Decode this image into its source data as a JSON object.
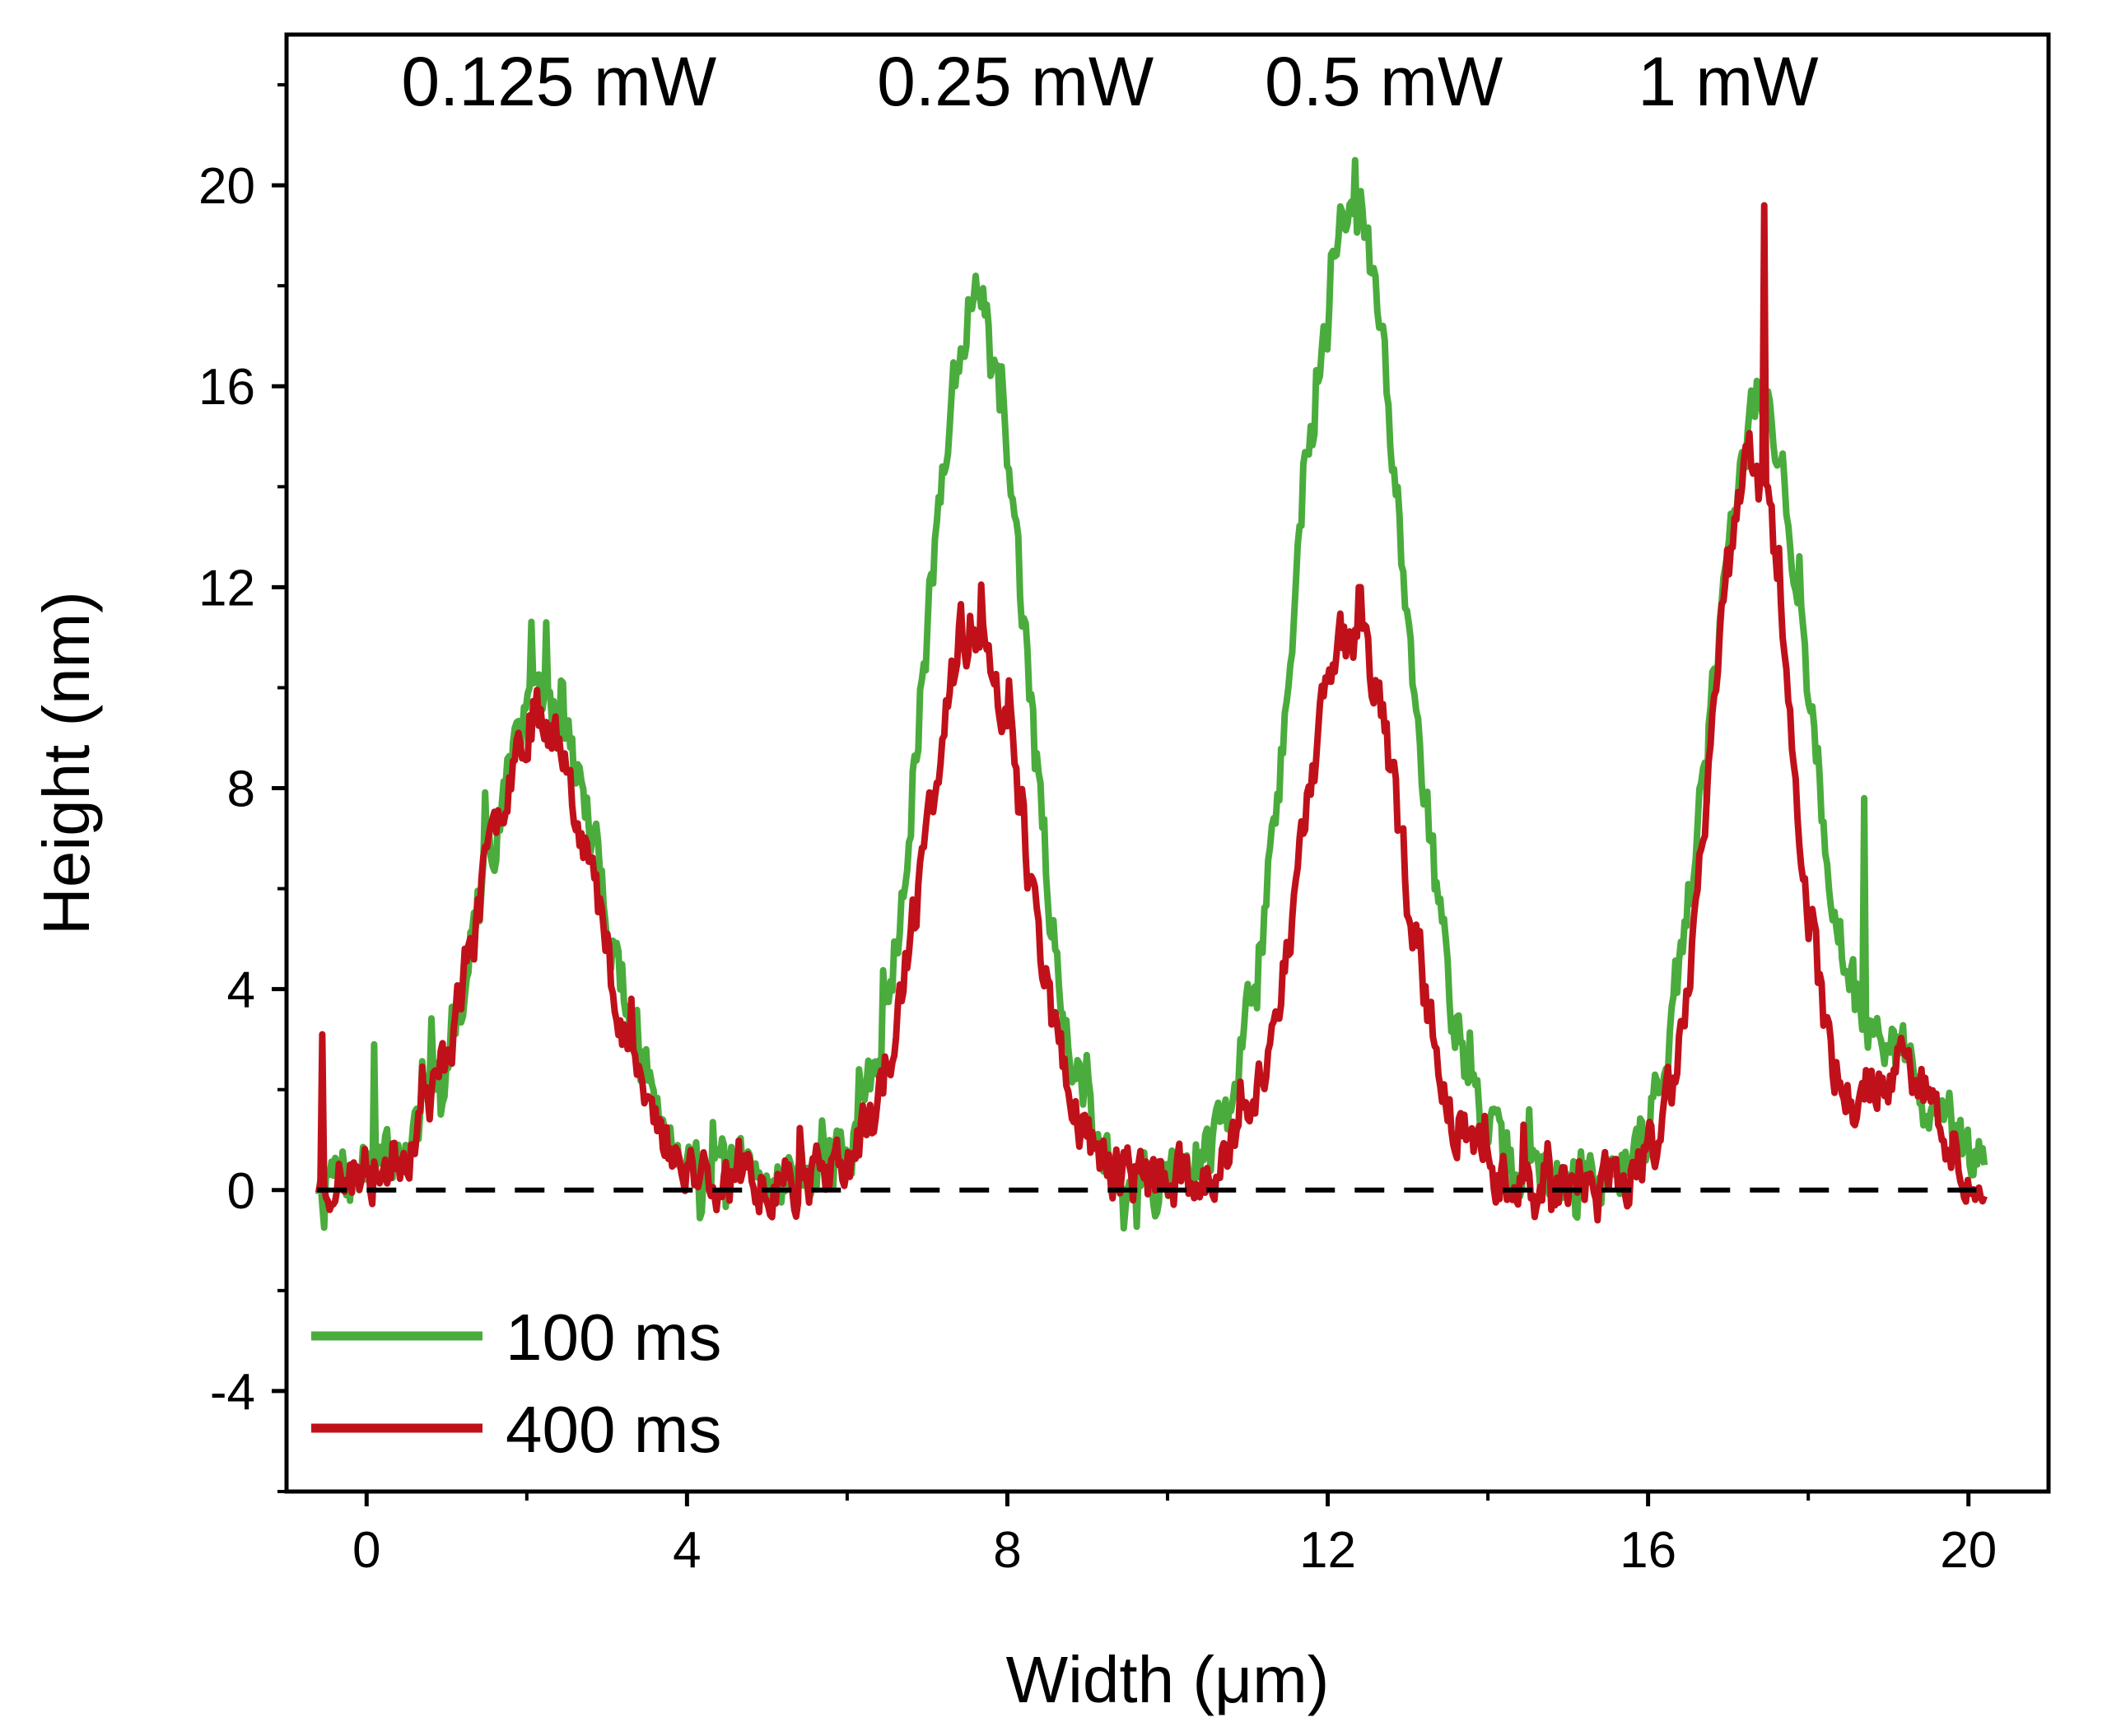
{
  "chart_data": {
    "type": "line",
    "title": "",
    "xlabel": "Width (μm)",
    "ylabel": "Height (nm)",
    "xlim": [
      -1,
      21
    ],
    "ylim": [
      -6,
      23
    ],
    "x_ticks": [
      0,
      4,
      8,
      12,
      16,
      20
    ],
    "x_tick_labels": [
      "0",
      "4",
      "8",
      "12",
      "16",
      "20"
    ],
    "x_minor_ticks": [
      2,
      6,
      10,
      14,
      18
    ],
    "y_ticks": [
      -4,
      0,
      4,
      8,
      12,
      16,
      20
    ],
    "y_tick_labels": [
      "-4",
      "0",
      "4",
      "8",
      "12",
      "16",
      "20"
    ],
    "y_minor_ticks": [
      -6,
      -2,
      2,
      6,
      10,
      14,
      18,
      22
    ],
    "grid": false,
    "legend_position": "bottom-left",
    "reference_line": {
      "y": 0,
      "style": "dashed",
      "color": "#000000"
    },
    "annotations": [
      {
        "text": "0.125 mW",
        "x": 2.4
      },
      {
        "text": "0.25 mW",
        "x": 8.1
      },
      {
        "text": "0.5 mW",
        "x": 12.7
      },
      {
        "text": "1 mW",
        "x": 17.0
      }
    ],
    "series": [
      {
        "name": "100 ms",
        "color": "#4aac3c",
        "x_start": -0.6,
        "x_end": 20.2,
        "peaks": [
          {
            "x": 2.2,
            "height": 9.5,
            "width": 0.75
          },
          {
            "x": 7.6,
            "height": 17.5,
            "width": 0.62
          },
          {
            "x": 12.3,
            "height": 19.3,
            "width": 0.68
          },
          {
            "x": 17.4,
            "height": 15.5,
            "width": 0.62
          }
        ],
        "spikes": [
          {
            "x": 2.25,
            "y": 11.3
          },
          {
            "x": 12.35,
            "y": 20.5
          },
          {
            "x": 18.7,
            "y": 7.8
          },
          {
            "x": 0.1,
            "y": 2.9
          }
        ],
        "noise_amplitude": 1.0,
        "seed": 7
      },
      {
        "name": "400 ms",
        "color": "#c0111a",
        "x_start": -0.6,
        "x_end": 20.2,
        "peaks": [
          {
            "x": 2.15,
            "height": 9.3,
            "width": 0.72
          },
          {
            "x": 7.6,
            "height": 11.0,
            "width": 0.62
          },
          {
            "x": 12.3,
            "height": 11.0,
            "width": 0.62
          },
          {
            "x": 17.3,
            "height": 14.5,
            "width": 0.5
          }
        ],
        "spikes": [
          {
            "x": 17.45,
            "y": 19.6
          },
          {
            "x": -0.55,
            "y": 3.1
          },
          {
            "x": 12.4,
            "y": 12.0
          }
        ],
        "noise_amplitude": 0.9,
        "seed": 23
      }
    ]
  }
}
